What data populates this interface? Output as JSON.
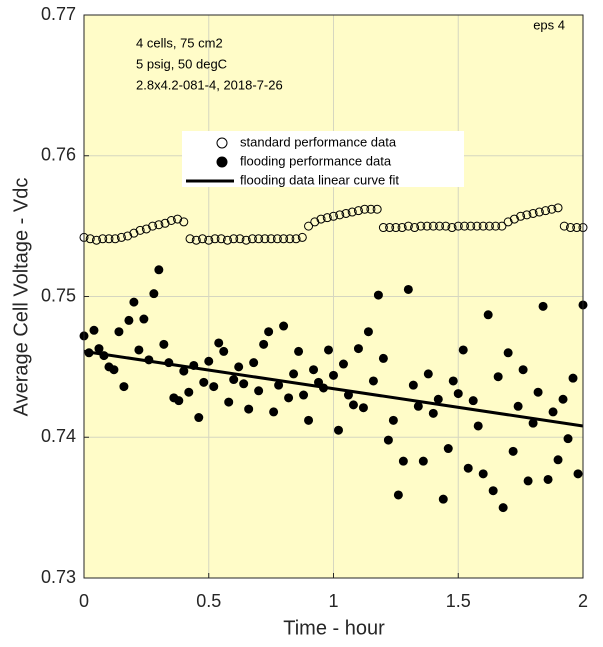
{
  "chart_data": {
    "type": "scatter",
    "xlabel": "Time - hour",
    "ylabel": "Average Cell Voltage - Vdc",
    "annotations": [
      "4 cells, 75 cm2",
      "5 psig, 50 degC",
      "2.8x4.2-081-4, 2018-7-26"
    ],
    "corner_note": "eps 4",
    "xlim": [
      0,
      2
    ],
    "ylim": [
      0.73,
      0.77
    ],
    "xticks": [
      0,
      0.5,
      1,
      1.5,
      2
    ],
    "yticks": [
      0.73,
      0.74,
      0.75,
      0.76,
      0.77
    ],
    "grid": true,
    "background": "#fffcc8",
    "series": [
      {
        "name": "standard performance data",
        "type": "scatter",
        "filled": false,
        "color": "#000000",
        "x": [
          0,
          0.025,
          0.05,
          0.075,
          0.1,
          0.125,
          0.15,
          0.175,
          0.2,
          0.225,
          0.25,
          0.275,
          0.3,
          0.325,
          0.35,
          0.375,
          0.4,
          0.425,
          0.45,
          0.475,
          0.5,
          0.525,
          0.55,
          0.575,
          0.6,
          0.625,
          0.65,
          0.675,
          0.7,
          0.725,
          0.75,
          0.775,
          0.8,
          0.825,
          0.85,
          0.875,
          0.9,
          0.925,
          0.95,
          0.975,
          1,
          1.025,
          1.05,
          1.075,
          1.1,
          1.125,
          1.15,
          1.175,
          1.2,
          1.225,
          1.25,
          1.275,
          1.3,
          1.325,
          1.35,
          1.375,
          1.4,
          1.425,
          1.45,
          1.475,
          1.5,
          1.525,
          1.55,
          1.575,
          1.6,
          1.625,
          1.65,
          1.675,
          1.7,
          1.725,
          1.75,
          1.775,
          1.8,
          1.825,
          1.85,
          1.875,
          1.9,
          1.925,
          1.95,
          1.975,
          2
        ],
        "values": [
          0.7542,
          0.7541,
          0.754,
          0.7541,
          0.7541,
          0.7541,
          0.7542,
          0.7543,
          0.7545,
          0.7547,
          0.7548,
          0.755,
          0.7551,
          0.7552,
          0.7554,
          0.7555,
          0.7553,
          0.7541,
          0.754,
          0.7541,
          0.754,
          0.7541,
          0.7541,
          0.754,
          0.7541,
          0.7541,
          0.754,
          0.7541,
          0.7541,
          0.7541,
          0.7541,
          0.7541,
          0.7541,
          0.7541,
          0.7541,
          0.7542,
          0.755,
          0.7553,
          0.7555,
          0.7556,
          0.7557,
          0.7558,
          0.7559,
          0.756,
          0.7561,
          0.7562,
          0.7562,
          0.7562,
          0.7549,
          0.7549,
          0.7549,
          0.7549,
          0.755,
          0.7549,
          0.755,
          0.755,
          0.755,
          0.755,
          0.755,
          0.7549,
          0.755,
          0.755,
          0.755,
          0.755,
          0.755,
          0.755,
          0.755,
          0.755,
          0.7553,
          0.7555,
          0.7557,
          0.7558,
          0.7559,
          0.756,
          0.7561,
          0.7562,
          0.7563,
          0.755,
          0.7549,
          0.7549,
          0.7549
        ]
      },
      {
        "name": "flooding performance data",
        "type": "scatter",
        "filled": true,
        "color": "#000000",
        "x": [
          0,
          0.02,
          0.04,
          0.06,
          0.08,
          0.1,
          0.12,
          0.14,
          0.16,
          0.18,
          0.2,
          0.22,
          0.24,
          0.26,
          0.28,
          0.3,
          0.32,
          0.34,
          0.36,
          0.38,
          0.4,
          0.42,
          0.44,
          0.46,
          0.48,
          0.5,
          0.52,
          0.54,
          0.56,
          0.58,
          0.6,
          0.62,
          0.64,
          0.66,
          0.68,
          0.7,
          0.72,
          0.74,
          0.76,
          0.78,
          0.8,
          0.82,
          0.84,
          0.86,
          0.88,
          0.9,
          0.92,
          0.94,
          0.96,
          0.98,
          1,
          1.02,
          1.04,
          1.06,
          1.08,
          1.1,
          1.12,
          1.14,
          1.16,
          1.18,
          1.2,
          1.22,
          1.24,
          1.26,
          1.28,
          1.3,
          1.32,
          1.34,
          1.36,
          1.38,
          1.4,
          1.42,
          1.44,
          1.46,
          1.48,
          1.5,
          1.52,
          1.54,
          1.56,
          1.58,
          1.6,
          1.62,
          1.64,
          1.66,
          1.68,
          1.7,
          1.72,
          1.74,
          1.76,
          1.78,
          1.8,
          1.82,
          1.84,
          1.86,
          1.88,
          1.9,
          1.92,
          1.94,
          1.96,
          1.98,
          2
        ],
        "values": [
          0.7472,
          0.746,
          0.7476,
          0.7463,
          0.7458,
          0.745,
          0.7448,
          0.7475,
          0.7436,
          0.7483,
          0.7496,
          0.7462,
          0.7484,
          0.7455,
          0.7502,
          0.7519,
          0.7466,
          0.7453,
          0.7428,
          0.7426,
          0.7447,
          0.7432,
          0.7451,
          0.7414,
          0.7439,
          0.7454,
          0.7436,
          0.7467,
          0.7461,
          0.7425,
          0.7441,
          0.745,
          0.7438,
          0.742,
          0.7453,
          0.7433,
          0.7466,
          0.7475,
          0.7418,
          0.7437,
          0.7479,
          0.7428,
          0.7445,
          0.7461,
          0.743,
          0.7412,
          0.7448,
          0.7439,
          0.7435,
          0.7462,
          0.7444,
          0.7405,
          0.7452,
          0.743,
          0.7423,
          0.7463,
          0.7421,
          0.7475,
          0.744,
          0.7501,
          0.7456,
          0.7398,
          0.7412,
          0.7359,
          0.7383,
          0.7505,
          0.7437,
          0.7422,
          0.7383,
          0.7445,
          0.7417,
          0.7427,
          0.7356,
          0.7392,
          0.744,
          0.7431,
          0.7462,
          0.7378,
          0.7426,
          0.7408,
          0.7374,
          0.7487,
          0.7362,
          0.7443,
          0.735,
          0.746,
          0.739,
          0.7422,
          0.7448,
          0.7369,
          0.741,
          0.7432,
          0.7493,
          0.737,
          0.7418,
          0.7384,
          0.7427,
          0.7399,
          0.7442,
          0.7374,
          0.7494
        ]
      },
      {
        "name": "flooding data linear curve fit",
        "type": "line",
        "color": "#000000",
        "x": [
          0,
          2
        ],
        "values": [
          0.7461,
          0.7408
        ]
      }
    ]
  }
}
